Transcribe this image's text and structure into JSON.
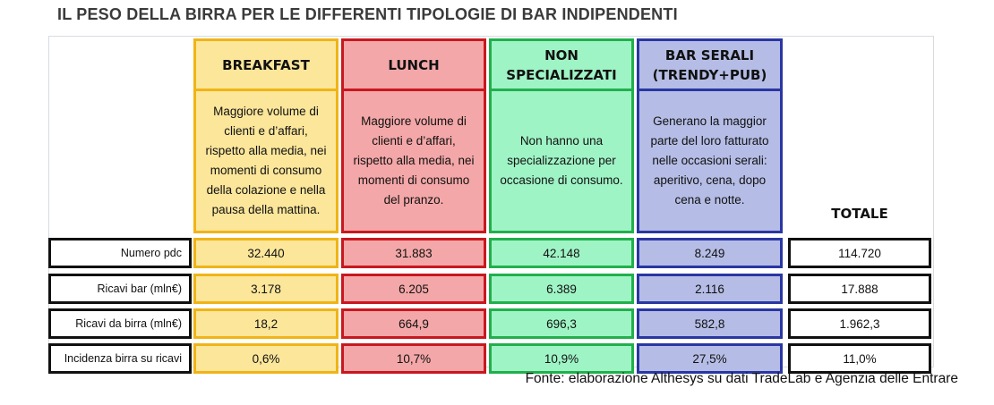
{
  "title": "IL PESO DELLA BIRRA PER LE DIFFERENTI TIPOLOGIE DI BAR INDIPENDENTI",
  "columns": [
    {
      "header": "BREAKFAST",
      "header_line2": "",
      "color": "#f0b417",
      "fill": "#fbe69a",
      "description": [
        "Maggiore volume di",
        "clienti e d’affari,",
        "rispetto alla media, nei",
        "momenti di consumo",
        "della colazione e nella",
        "pausa della mattina."
      ]
    },
    {
      "header": "LUNCH",
      "header_line2": "",
      "color": "#c9171f",
      "fill": "#f4a7a8",
      "description": [
        "Maggiore volume di",
        "clienti e d’affari,",
        "rispetto alla media, nei",
        "momenti di consumo",
        "del pranzo."
      ]
    },
    {
      "header": "NON SPECIALIZZATI",
      "header_line2": "",
      "color": "#21b04c",
      "fill": "#9ff4c6",
      "description": [
        "Non hanno una",
        "specializzazione per",
        "occasione di consumo."
      ]
    },
    {
      "header": "BAR SERALI",
      "header_line2": "(TRENDY+PUB)",
      "color": "#2a36a2",
      "fill": "#b5bde6",
      "description": [
        "Generano la maggior",
        "parte del loro fatturato",
        "nelle occasioni serali:",
        "aperitivo, cena, dopo",
        "cena e notte."
      ]
    }
  ],
  "total_header": "TOTALE",
  "rows": [
    {
      "label": "Numero pdc",
      "values": [
        "32.440",
        "31.883",
        "42.148",
        "8.249"
      ],
      "total": "114.720"
    },
    {
      "label": "Ricavi bar (mln€)",
      "values": [
        "3.178",
        "6.205",
        "6.389",
        "2.116"
      ],
      "total": "17.888"
    },
    {
      "label": "Ricavi da birra (mln€)",
      "values": [
        "18,2",
        "664,9",
        "696,3",
        "582,8"
      ],
      "total": "1.962,3"
    },
    {
      "label": "Incidenza birra su ricavi",
      "values": [
        "0,6%",
        "10,7%",
        "10,9%",
        "27,5%"
      ],
      "total": "11,0%"
    }
  ],
  "source": "Fonte: elaborazione Althesys su dati TradeLab e Agenzia delle Entrare"
}
